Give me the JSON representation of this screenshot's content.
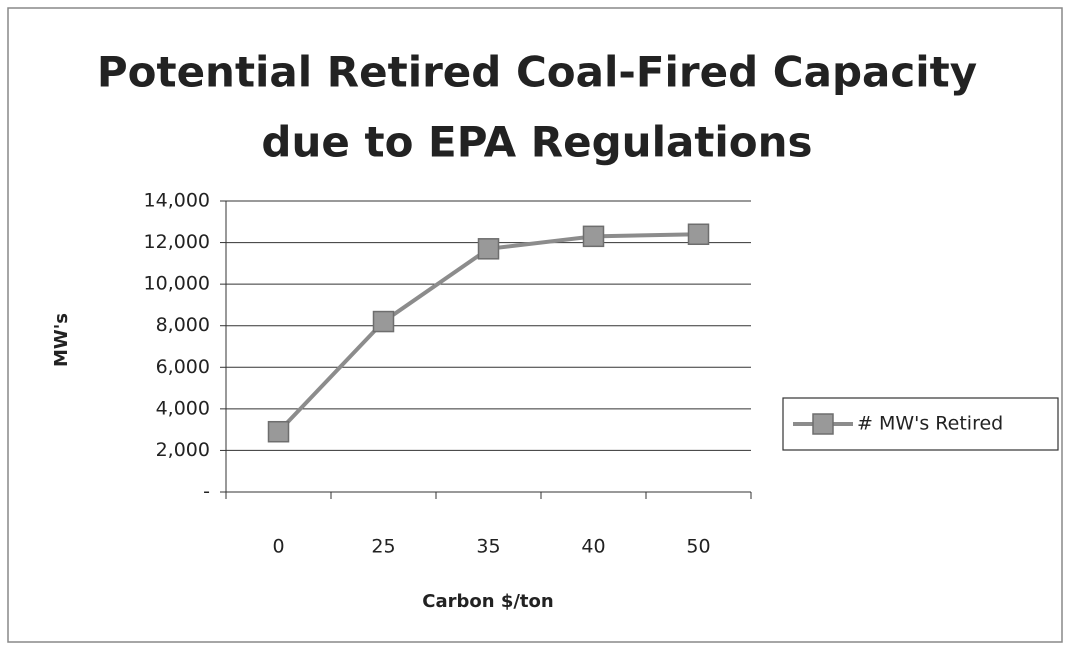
{
  "chart_data": {
    "type": "line",
    "title": [
      "Potential Retired Coal-Fired Capacity",
      "due to EPA Regulations"
    ],
    "x_label": "Carbon $/ton",
    "y_label": "MW's",
    "categories": [
      "0",
      "25",
      "35",
      "40",
      "50"
    ],
    "series": [
      {
        "name": "# MW's Retired",
        "color": "#8c8c8c",
        "values": [
          2900,
          8200,
          11700,
          12300,
          12400
        ]
      }
    ],
    "ylim": [
      0,
      14000
    ],
    "yticks": [
      {
        "value": 0,
        "label": "-"
      },
      {
        "value": 2000,
        "label": "2,000"
      },
      {
        "value": 4000,
        "label": "4,000"
      },
      {
        "value": 6000,
        "label": "6,000"
      },
      {
        "value": 8000,
        "label": "8,000"
      },
      {
        "value": 10000,
        "label": "10,000"
      },
      {
        "value": 12000,
        "label": "12,000"
      },
      {
        "value": 14000,
        "label": "14,000"
      }
    ],
    "grid": true,
    "legend": "right"
  }
}
